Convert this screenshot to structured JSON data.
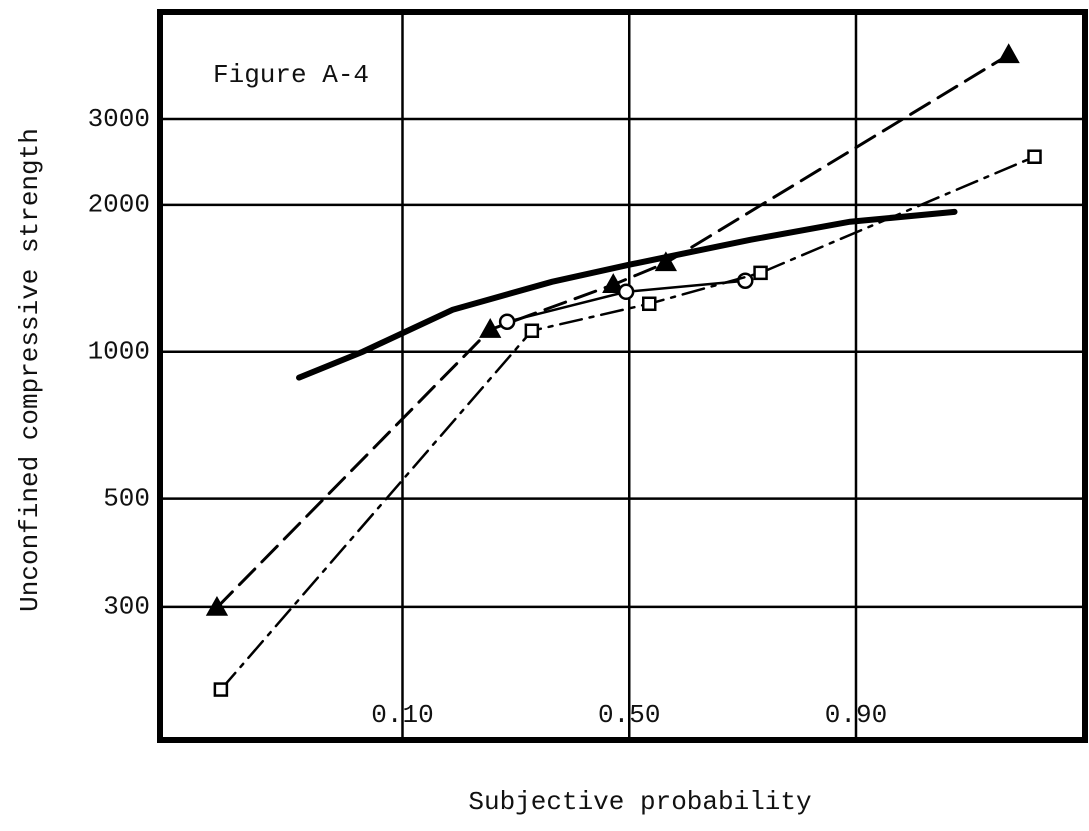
{
  "chart_data": {
    "type": "line",
    "annotation": "Figure A-4",
    "xlabel": "Subjective probability",
    "ylabel": "Unconfined compressive strength",
    "x_scale": "probability",
    "y_scale": "log",
    "grid": true,
    "xlim": [
      0.004,
      0.995
    ],
    "ylim": [
      160,
      4970
    ],
    "xticks": [
      {
        "value": 0.1,
        "label": "0.10"
      },
      {
        "value": 0.5,
        "label": "0.50"
      },
      {
        "value": 0.9,
        "label": "0.90"
      }
    ],
    "yticks": [
      300,
      500,
      1000,
      2000,
      3000
    ],
    "series": [
      {
        "color": "#000000",
        "line_style": "solid",
        "line_width": 6,
        "marker": "none",
        "x": [
          0.031,
          0.066,
          0.159,
          0.331,
          0.5,
          0.753,
          0.894,
          0.967
        ],
        "values": [
          885,
          1000,
          1219,
          1391,
          1508,
          1696,
          1847,
          1935
        ]
      },
      {
        "color": "#000000",
        "line_style": "dashed",
        "line_width": 3,
        "marker": "triangle",
        "x": [
          0.0099,
          0.216,
          0.464,
          0.582,
          0.984
        ],
        "values": [
          299,
          1110,
          1372,
          1521,
          4060
        ]
      },
      {
        "color": "#000000",
        "line_style": "solid",
        "line_width": 2.5,
        "marker": "circle",
        "x": [
          0.245,
          0.493,
          0.744
        ],
        "values": [
          1152,
          1327,
          1398
        ]
      },
      {
        "color": "#000000",
        "line_style": "dashdot",
        "line_width": 2.5,
        "marker": "square",
        "x": [
          0.0105,
          0.291,
          0.545,
          0.771,
          0.989
        ],
        "values": [
          203,
          1104,
          1254,
          1451,
          2510
        ]
      }
    ]
  }
}
